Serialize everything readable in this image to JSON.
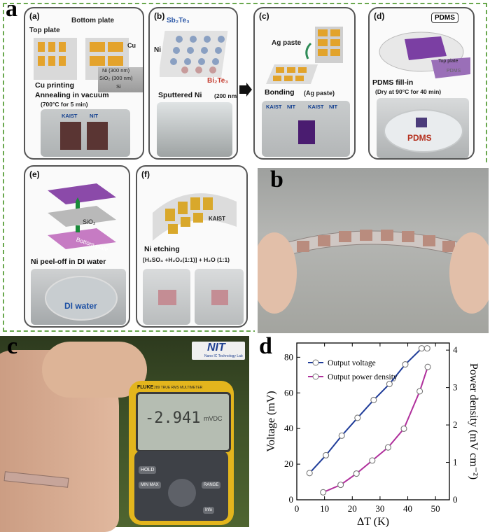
{
  "figure": {
    "panel_labels": {
      "a": "a",
      "b": "b",
      "c": "c",
      "d": "d"
    },
    "steps": [
      {
        "letter": "(a)",
        "labels": [
          "Bottom plate",
          "Top plate",
          "Cu",
          "Ni (300 nm)",
          "SiO₂ (300 nm)",
          "Si"
        ],
        "bullets": [
          "Cu printing",
          "Annealing in vacuum"
        ],
        "note": "(700°C for 5 min)",
        "logos": [
          "KAIST",
          "NIT"
        ]
      },
      {
        "letter": "(b)",
        "labels": [
          "Sb₂Te₃",
          "Ni",
          "Bi₂Te₃"
        ],
        "bullets": [
          "Sputtered Ni"
        ],
        "note": "(200 nm)"
      },
      {
        "letter": "(c)",
        "labels": [
          "Ag paste"
        ],
        "bullets": [
          "Bonding"
        ],
        "note": "(Ag paste)",
        "logos": [
          "KAIST",
          "NIT",
          "KAIST",
          "NIT"
        ]
      },
      {
        "letter": "(d)",
        "labels": [
          "PDMS",
          "Top plate",
          "PDMS"
        ],
        "bullets": [
          "PDMS  fill-in"
        ],
        "note": "(Dry at 90°C for 40 min)",
        "photo_label": "PDMS"
      },
      {
        "letter": "(e)",
        "labels": [
          "SiO₂",
          "Bottom plate"
        ],
        "bullets": [
          "Ni peel-off  in DI water"
        ],
        "photo_label": "DI water"
      },
      {
        "letter": "(f)",
        "labels": [
          "KAIST"
        ],
        "bullets": [
          "Ni etching"
        ],
        "note": "[H₂SO₄ +H₂O₂(1:1)] + H₂O (1:1)"
      }
    ],
    "panel_c": {
      "logo_text": "NIT",
      "logo_sub": "Nano IC Technology Lab",
      "reading": "-2.941",
      "unit": "mVDC",
      "brand": "FLUKE",
      "model": "289 TRUE RMS MULTIMETER",
      "buttons": [
        "HOLD",
        "MIN MAX",
        "RANGE",
        "Info"
      ]
    }
  },
  "chart_data": {
    "type": "line",
    "xlabel": "ΔT (K)",
    "ylabel": "Voltage (mV)",
    "y2label": "Power density (mV cm⁻²)",
    "xlim": [
      0,
      55
    ],
    "ylim": [
      0,
      88
    ],
    "y2lim": [
      0,
      4.19
    ],
    "xticks": [
      "0",
      "10",
      "20",
      "30",
      "40",
      "50"
    ],
    "yticks": [
      "0",
      "20",
      "40",
      "60",
      "80"
    ],
    "y2ticks": [
      "0",
      "1",
      "2",
      "3",
      "4"
    ],
    "legend_position": "top-left",
    "series": [
      {
        "name": "Output voltage",
        "axis": "left",
        "color": "#1f3c99",
        "x": [
          4.6,
          10.5,
          16.2,
          21.9,
          27.7,
          33.4,
          39.1,
          45.0,
          47.0
        ],
        "y": [
          15,
          25,
          36,
          46,
          56,
          65,
          76,
          85,
          85
        ]
      },
      {
        "name": "Output power density",
        "axis": "right",
        "color": "#b0309c",
        "x": [
          9.5,
          15.8,
          21.5,
          27.2,
          32.9,
          38.6,
          44.3,
          47.2
        ],
        "y": [
          0.2,
          0.4,
          0.7,
          1.05,
          1.4,
          1.9,
          2.9,
          3.55
        ]
      }
    ]
  }
}
